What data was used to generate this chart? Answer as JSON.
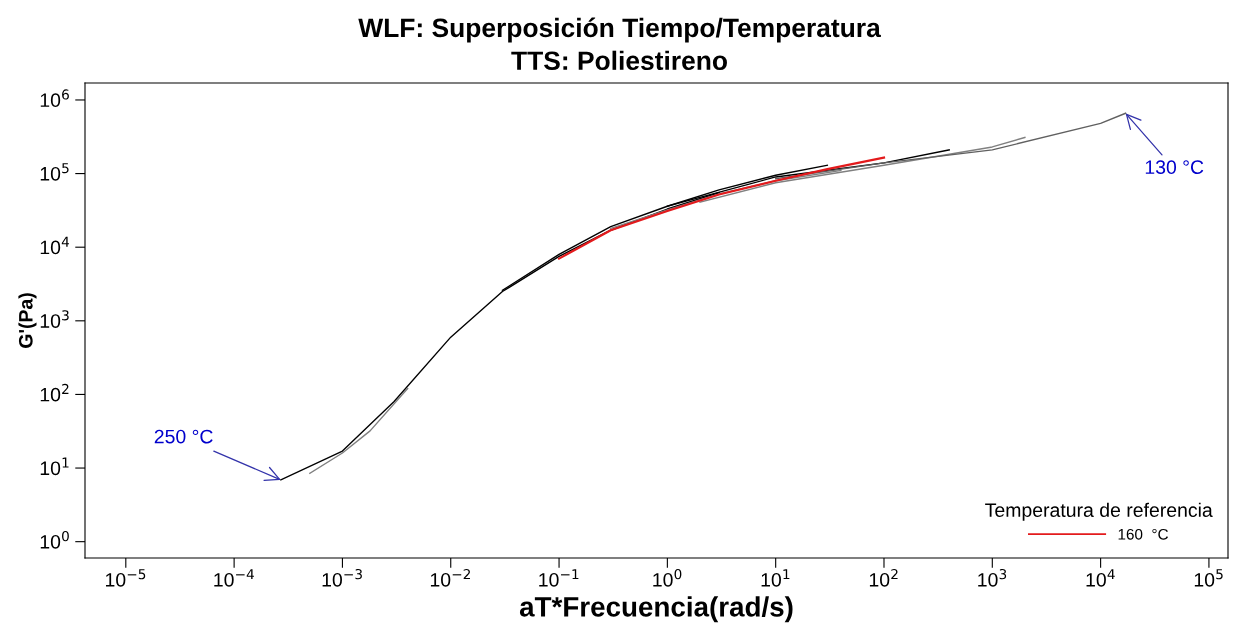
{
  "chart_data": {
    "type": "line",
    "title": "WLF: Superposición Tiempo/Temperatura",
    "subtitle": "TTS: Poliestireno",
    "xlabel": "aT*Frecuencia(rad/s)",
    "ylabel": "G'(Pa)",
    "legend_title": "Temperatura de referencia",
    "legend": "bottom right",
    "grid": false,
    "marker": "none",
    "line_style": "solid",
    "log": "xy",
    "xlim": [
      4.2e-06,
      150000.0
    ],
    "ylim": [
      0.6,
      1700000.0
    ],
    "xticks": [
      {
        "value": 1e-05,
        "label": "10$^{−5}$"
      },
      {
        "value": 0.0001,
        "label": "10$^{−4}$"
      },
      {
        "value": 0.001,
        "label": "10$^{−3}$"
      },
      {
        "value": 0.01,
        "label": "10$^{−2}$"
      },
      {
        "value": 0.1,
        "label": "10$^{−1}$"
      },
      {
        "value": 1,
        "label": "10$^{0}$"
      },
      {
        "value": 10,
        "label": "10$^{1}$"
      },
      {
        "value": 100,
        "label": "10$^{2}$"
      },
      {
        "value": 1000,
        "label": "10$^{3}$"
      },
      {
        "value": 10000,
        "label": "10$^{4}$"
      },
      {
        "value": 100000,
        "label": "10$^{5}$"
      }
    ],
    "yticks": [
      {
        "value": 1,
        "label": "10$^{0}$"
      },
      {
        "value": 10,
        "label": "10$^{1}$"
      },
      {
        "value": 100,
        "label": "10$^{2}$"
      },
      {
        "value": 1000,
        "label": "10$^{3}$"
      },
      {
        "value": 10000,
        "label": "10$^{4}$"
      },
      {
        "value": 100000,
        "label": "10$^{5}$"
      },
      {
        "value": 1000000,
        "label": "10$^{6}$"
      }
    ],
    "series": [
      {
        "color": "#000000",
        "x": [
          0.00027,
          0.001,
          0.003,
          0.01,
          0.03,
          0.1,
          0.3,
          1,
          3
        ],
        "values": [
          6.9,
          17,
          80,
          600,
          2500,
          7500,
          17000,
          33000,
          55000
        ]
      },
      {
        "color": "#808080",
        "x": [
          0.0005,
          0.001,
          0.0018,
          0.004
        ],
        "values": [
          8.5,
          16,
          32,
          120
        ]
      },
      {
        "color": "#000000",
        "x": [
          0.03,
          0.1,
          0.3,
          1,
          3,
          10,
          30
        ],
        "values": [
          2600,
          8000,
          19000,
          36000,
          60000,
          95000,
          130000
        ]
      },
      {
        "color": "#808080",
        "x": [
          0.3,
          1,
          3,
          10,
          40
        ],
        "values": [
          18000,
          32000,
          53000,
          80000,
          110000
        ]
      },
      {
        "color": "#000000",
        "x": [
          1,
          10,
          100,
          400
        ],
        "values": [
          36000,
          90000,
          140000,
          210000
        ]
      },
      {
        "color": "#808080",
        "x": [
          2,
          10,
          100,
          1000,
          2000
        ],
        "values": [
          41000,
          75000,
          130000,
          230000,
          310000
        ]
      },
      {
        "color": "#606060",
        "x": [
          10,
          100,
          1000,
          10000,
          17000
        ],
        "values": [
          85000,
          140000,
          210000,
          480000,
          660000
        ]
      },
      {
        "name": "160  °C",
        "color": "#e31a1c",
        "x": [
          0.1,
          0.3,
          1,
          3,
          10,
          30,
          100
        ],
        "values": [
          7000,
          17000,
          31000,
          52000,
          80000,
          115000,
          165000
        ]
      }
    ],
    "annotations": [
      {
        "text": "250 °C",
        "x": 0.00027,
        "y": 6.9
      },
      {
        "text": "130 °C",
        "x": 17000,
        "y": 660000
      }
    ]
  }
}
